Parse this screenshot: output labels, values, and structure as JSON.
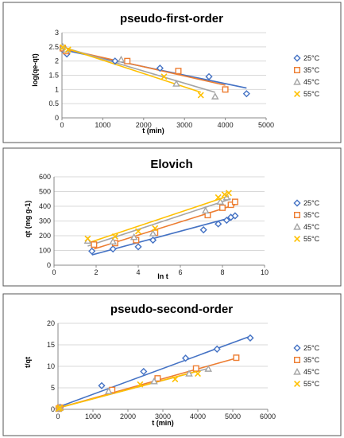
{
  "colors": {
    "25": "#4472C4",
    "35": "#ED7D31",
    "45": "#A5A5A5",
    "55": "#FFC000"
  },
  "chart_data": [
    {
      "type": "scatter",
      "title": "pseudo-first-order",
      "xlabel": "t (min)",
      "ylabel": "log(qe-qt)",
      "xlim": [
        0,
        5000
      ],
      "ylim": [
        0,
        3
      ],
      "xticks": [
        0,
        1000,
        2000,
        3000,
        4000,
        5000
      ],
      "yticks": [
        0,
        0.5,
        1,
        1.5,
        2,
        2.5,
        3
      ],
      "grid": true,
      "legend_position": "right",
      "series": [
        {
          "name": "25°C",
          "marker": "diamond",
          "color_key": "25",
          "x": [
            20,
            120,
            1300,
            2400,
            3600,
            4520
          ],
          "y": [
            2.4,
            2.25,
            2.0,
            1.75,
            1.45,
            0.85
          ],
          "fit": [
            [
              0,
              2.4
            ],
            [
              4520,
              1.05
            ]
          ]
        },
        {
          "name": "35°C",
          "marker": "square",
          "color_key": "35",
          "x": [
            20,
            100,
            1600,
            2850,
            4000
          ],
          "y": [
            2.45,
            2.35,
            2.0,
            1.65,
            1.0
          ],
          "fit": [
            [
              0,
              2.45
            ],
            [
              4000,
              1.15
            ]
          ]
        },
        {
          "name": "45°C",
          "marker": "triangle",
          "color_key": "45",
          "x": [
            20,
            100,
            1450,
            2800,
            3750
          ],
          "y": [
            2.5,
            2.4,
            2.05,
            1.2,
            0.75
          ],
          "fit": [
            [
              0,
              2.5
            ],
            [
              3750,
              0.9
            ]
          ]
        },
        {
          "name": "55°C",
          "marker": "x",
          "color_key": "55",
          "x": [
            20,
            150,
            2500,
            3400
          ],
          "y": [
            2.48,
            2.4,
            1.45,
            0.8
          ],
          "fit": [
            [
              0,
              2.5
            ],
            [
              3400,
              0.9
            ]
          ]
        }
      ]
    },
    {
      "type": "scatter",
      "title": "Elovich",
      "xlabel": "ln t",
      "ylabel": "qt (mg g-1)",
      "xlim": [
        0,
        10
      ],
      "ylim": [
        0,
        600
      ],
      "xticks": [
        0,
        2,
        4,
        6,
        8,
        10
      ],
      "yticks": [
        0,
        100,
        200,
        300,
        400,
        500,
        600
      ],
      "grid": true,
      "legend_position": "right",
      "series": [
        {
          "name": "25°C",
          "marker": "diamond",
          "color_key": "25",
          "x": [
            1.8,
            2.8,
            4.0,
            4.7,
            7.1,
            7.8,
            8.2,
            8.4,
            8.6
          ],
          "y": [
            95,
            110,
            125,
            170,
            240,
            280,
            305,
            325,
            335
          ],
          "fit": [
            [
              1.8,
              70
            ],
            [
              8.6,
              330
            ]
          ]
        },
        {
          "name": "35°C",
          "marker": "square",
          "color_key": "35",
          "x": [
            1.9,
            2.9,
            3.9,
            4.8,
            7.3,
            8.0,
            8.4,
            8.6
          ],
          "y": [
            140,
            150,
            170,
            220,
            340,
            390,
            410,
            430
          ],
          "fit": [
            [
              1.9,
              110
            ],
            [
              8.6,
              410
            ]
          ]
        },
        {
          "name": "45°C",
          "marker": "triangle",
          "color_key": "45",
          "x": [
            1.6,
            2.8,
            3.8,
            4.7,
            7.2,
            7.9,
            8.2
          ],
          "y": [
            165,
            160,
            190,
            215,
            370,
            430,
            460
          ],
          "fit": [
            [
              1.6,
              130
            ],
            [
              8.4,
              450
            ]
          ]
        },
        {
          "name": "55°C",
          "marker": "x",
          "color_key": "55",
          "x": [
            1.6,
            2.9,
            4.0,
            4.8,
            7.8,
            8.1,
            8.3
          ],
          "y": [
            180,
            195,
            230,
            250,
            460,
            480,
            490
          ],
          "fit": [
            [
              1.6,
              150
            ],
            [
              8.3,
              470
            ]
          ]
        }
      ]
    },
    {
      "type": "scatter",
      "title": "pseudo-second-order",
      "xlabel": "t (min)",
      "ylabel": "t/qt",
      "xlim": [
        0,
        6000
      ],
      "ylim": [
        0,
        20
      ],
      "xticks": [
        0,
        1000,
        2000,
        3000,
        4000,
        5000,
        6000
      ],
      "yticks": [
        0,
        5,
        10,
        15,
        20
      ],
      "grid": true,
      "legend_position": "right",
      "series": [
        {
          "name": "25°C",
          "marker": "diamond",
          "color_key": "25",
          "x": [
            20,
            60,
            1250,
            2450,
            3650,
            4550,
            5500
          ],
          "y": [
            0.2,
            0.5,
            5.5,
            8.8,
            11.9,
            14.0,
            16.6
          ],
          "fit": [
            [
              0,
              0.5
            ],
            [
              5500,
              17.0
            ]
          ]
        },
        {
          "name": "35°C",
          "marker": "square",
          "color_key": "35",
          "x": [
            20,
            60,
            1550,
            2850,
            3950,
            5100
          ],
          "y": [
            0.15,
            0.4,
            4.5,
            7.2,
            9.5,
            12.0
          ],
          "fit": [
            [
              0,
              0.3
            ],
            [
              5100,
              11.9
            ]
          ]
        },
        {
          "name": "45°C",
          "marker": "triangle",
          "color_key": "45",
          "x": [
            20,
            60,
            1450,
            2750,
            3750,
            4300
          ],
          "y": [
            0.15,
            0.4,
            4.2,
            6.5,
            8.3,
            9.4
          ],
          "fit": [
            [
              0,
              0.3
            ],
            [
              4300,
              9.5
            ]
          ]
        },
        {
          "name": "55°C",
          "marker": "x",
          "color_key": "55",
          "x": [
            20,
            60,
            2350,
            3350,
            4000
          ],
          "y": [
            0.15,
            0.35,
            5.8,
            7.0,
            8.3
          ],
          "fit": [
            [
              0,
              0.3
            ],
            [
              4000,
              8.9
            ]
          ]
        }
      ]
    }
  ]
}
